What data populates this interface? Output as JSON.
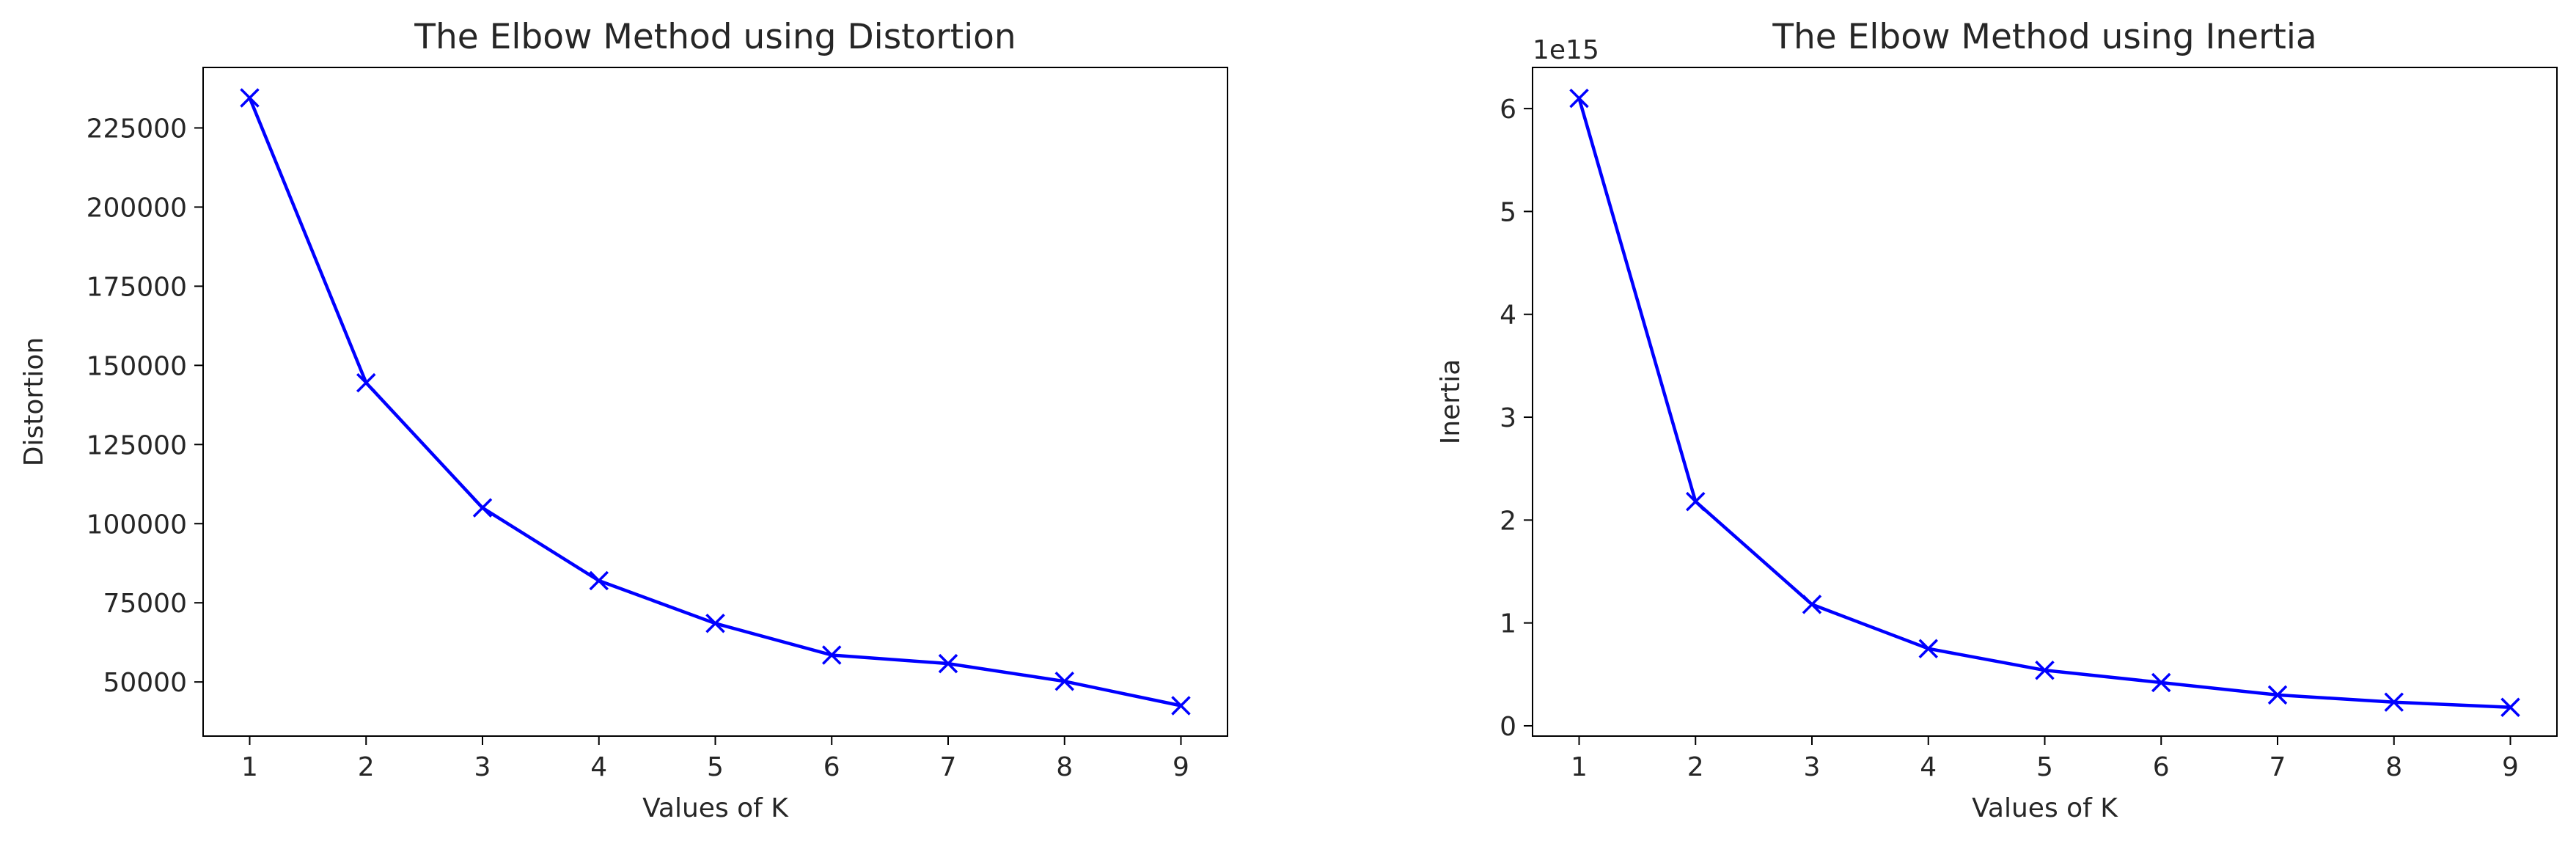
{
  "chart_data": [
    {
      "type": "line",
      "title": "The Elbow Method using Distortion",
      "xlabel": "Values of K",
      "ylabel": "Distortion",
      "x": [
        1,
        2,
        3,
        4,
        5,
        6,
        7,
        8,
        9
      ],
      "series": [
        {
          "values": [
            234500,
            144500,
            105000,
            82000,
            68500,
            58500,
            55800,
            50200,
            42500
          ],
          "color": "#0000ff",
          "marker": "x"
        }
      ],
      "xticks": [
        1,
        2,
        3,
        4,
        5,
        6,
        7,
        8,
        9
      ],
      "xtick_labels": [
        "1",
        "2",
        "3",
        "4",
        "5",
        "6",
        "7",
        "8",
        "9"
      ],
      "yticks": [
        50000,
        75000,
        100000,
        125000,
        150000,
        175000,
        200000,
        225000
      ],
      "ytick_labels": [
        "50000",
        "75000",
        "100000",
        "125000",
        "150000",
        "175000",
        "200000",
        "225000"
      ],
      "xlim": [
        0.6,
        9.4
      ],
      "ylim": [
        32900,
        244100
      ],
      "grid": false,
      "legend": "none"
    },
    {
      "type": "line",
      "title": "The Elbow Method using Inertia",
      "xlabel": "Values of K",
      "ylabel": "Inertia",
      "y_offset_label": "1e15",
      "x": [
        1,
        2,
        3,
        4,
        5,
        6,
        7,
        8,
        9
      ],
      "series": [
        {
          "values": [
            6.1,
            2.18,
            1.18,
            0.75,
            0.54,
            0.42,
            0.3,
            0.23,
            0.18
          ],
          "color": "#0000ff",
          "marker": "x"
        }
      ],
      "xticks": [
        1,
        2,
        3,
        4,
        5,
        6,
        7,
        8,
        9
      ],
      "xtick_labels": [
        "1",
        "2",
        "3",
        "4",
        "5",
        "6",
        "7",
        "8",
        "9"
      ],
      "yticks": [
        0,
        1,
        2,
        3,
        4,
        5,
        6
      ],
      "ytick_labels": [
        "0",
        "1",
        "2",
        "3",
        "4",
        "5",
        "6"
      ],
      "xlim": [
        0.6,
        9.4
      ],
      "ylim": [
        -0.1,
        6.4
      ],
      "grid": false,
      "legend": "none"
    }
  ]
}
